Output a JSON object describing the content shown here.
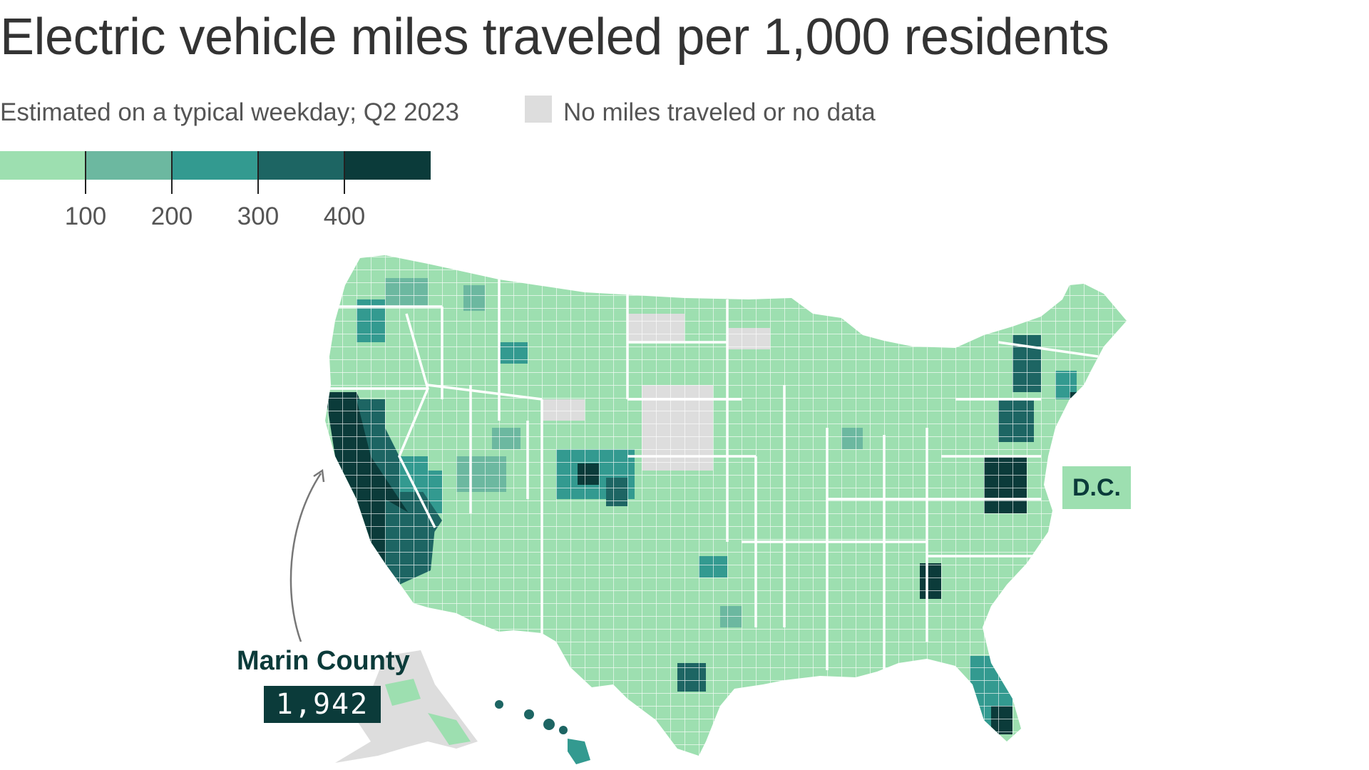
{
  "title": "Electric vehicle miles traveled per 1,000 residents",
  "subtitle": "Estimated on a typical weekday; Q2 2023",
  "no_data_label": "No miles traveled or no data",
  "legend": {
    "colors": [
      "#9ddfb0",
      "#6cb8a0",
      "#339a90",
      "#1d6563",
      "#0b3b3a"
    ],
    "no_data_color": "#dddddd",
    "ticks": [
      "100",
      "200",
      "300",
      "400"
    ]
  },
  "annotations": {
    "dc": {
      "label": "D.C.",
      "bin_color": "#9ddfb0"
    },
    "marin": {
      "name": "Marin County",
      "value": "1,942"
    }
  },
  "map_regions": {
    "states": "contiguous-us-states",
    "alaska": "alaska",
    "hawaii": "hawaii"
  }
}
